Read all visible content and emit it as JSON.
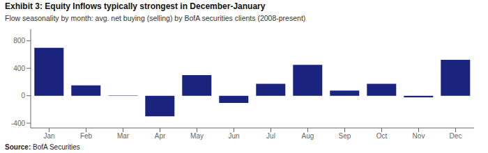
{
  "chart_data": {
    "type": "bar",
    "title": "Exhibit 3: Equity Inflows typically strongest in December-January",
    "subtitle": "Flow seasonality by month: avg. net buying (selling) by BofA securities clients (2008-present)",
    "source": "Source: BofA Securities",
    "categories": [
      "Jan",
      "Feb",
      "Mar",
      "Apr",
      "May",
      "Jun",
      "Jul",
      "Aug",
      "Sep",
      "Oct",
      "Nov",
      "Dec"
    ],
    "values": [
      700,
      150,
      5,
      -300,
      300,
      -105,
      175,
      450,
      75,
      175,
      -25,
      525
    ],
    "color": "#1a237e",
    "ylim": [
      -470,
      970
    ],
    "yticks": [
      -400,
      0,
      400,
      800
    ],
    "grid": false
  }
}
